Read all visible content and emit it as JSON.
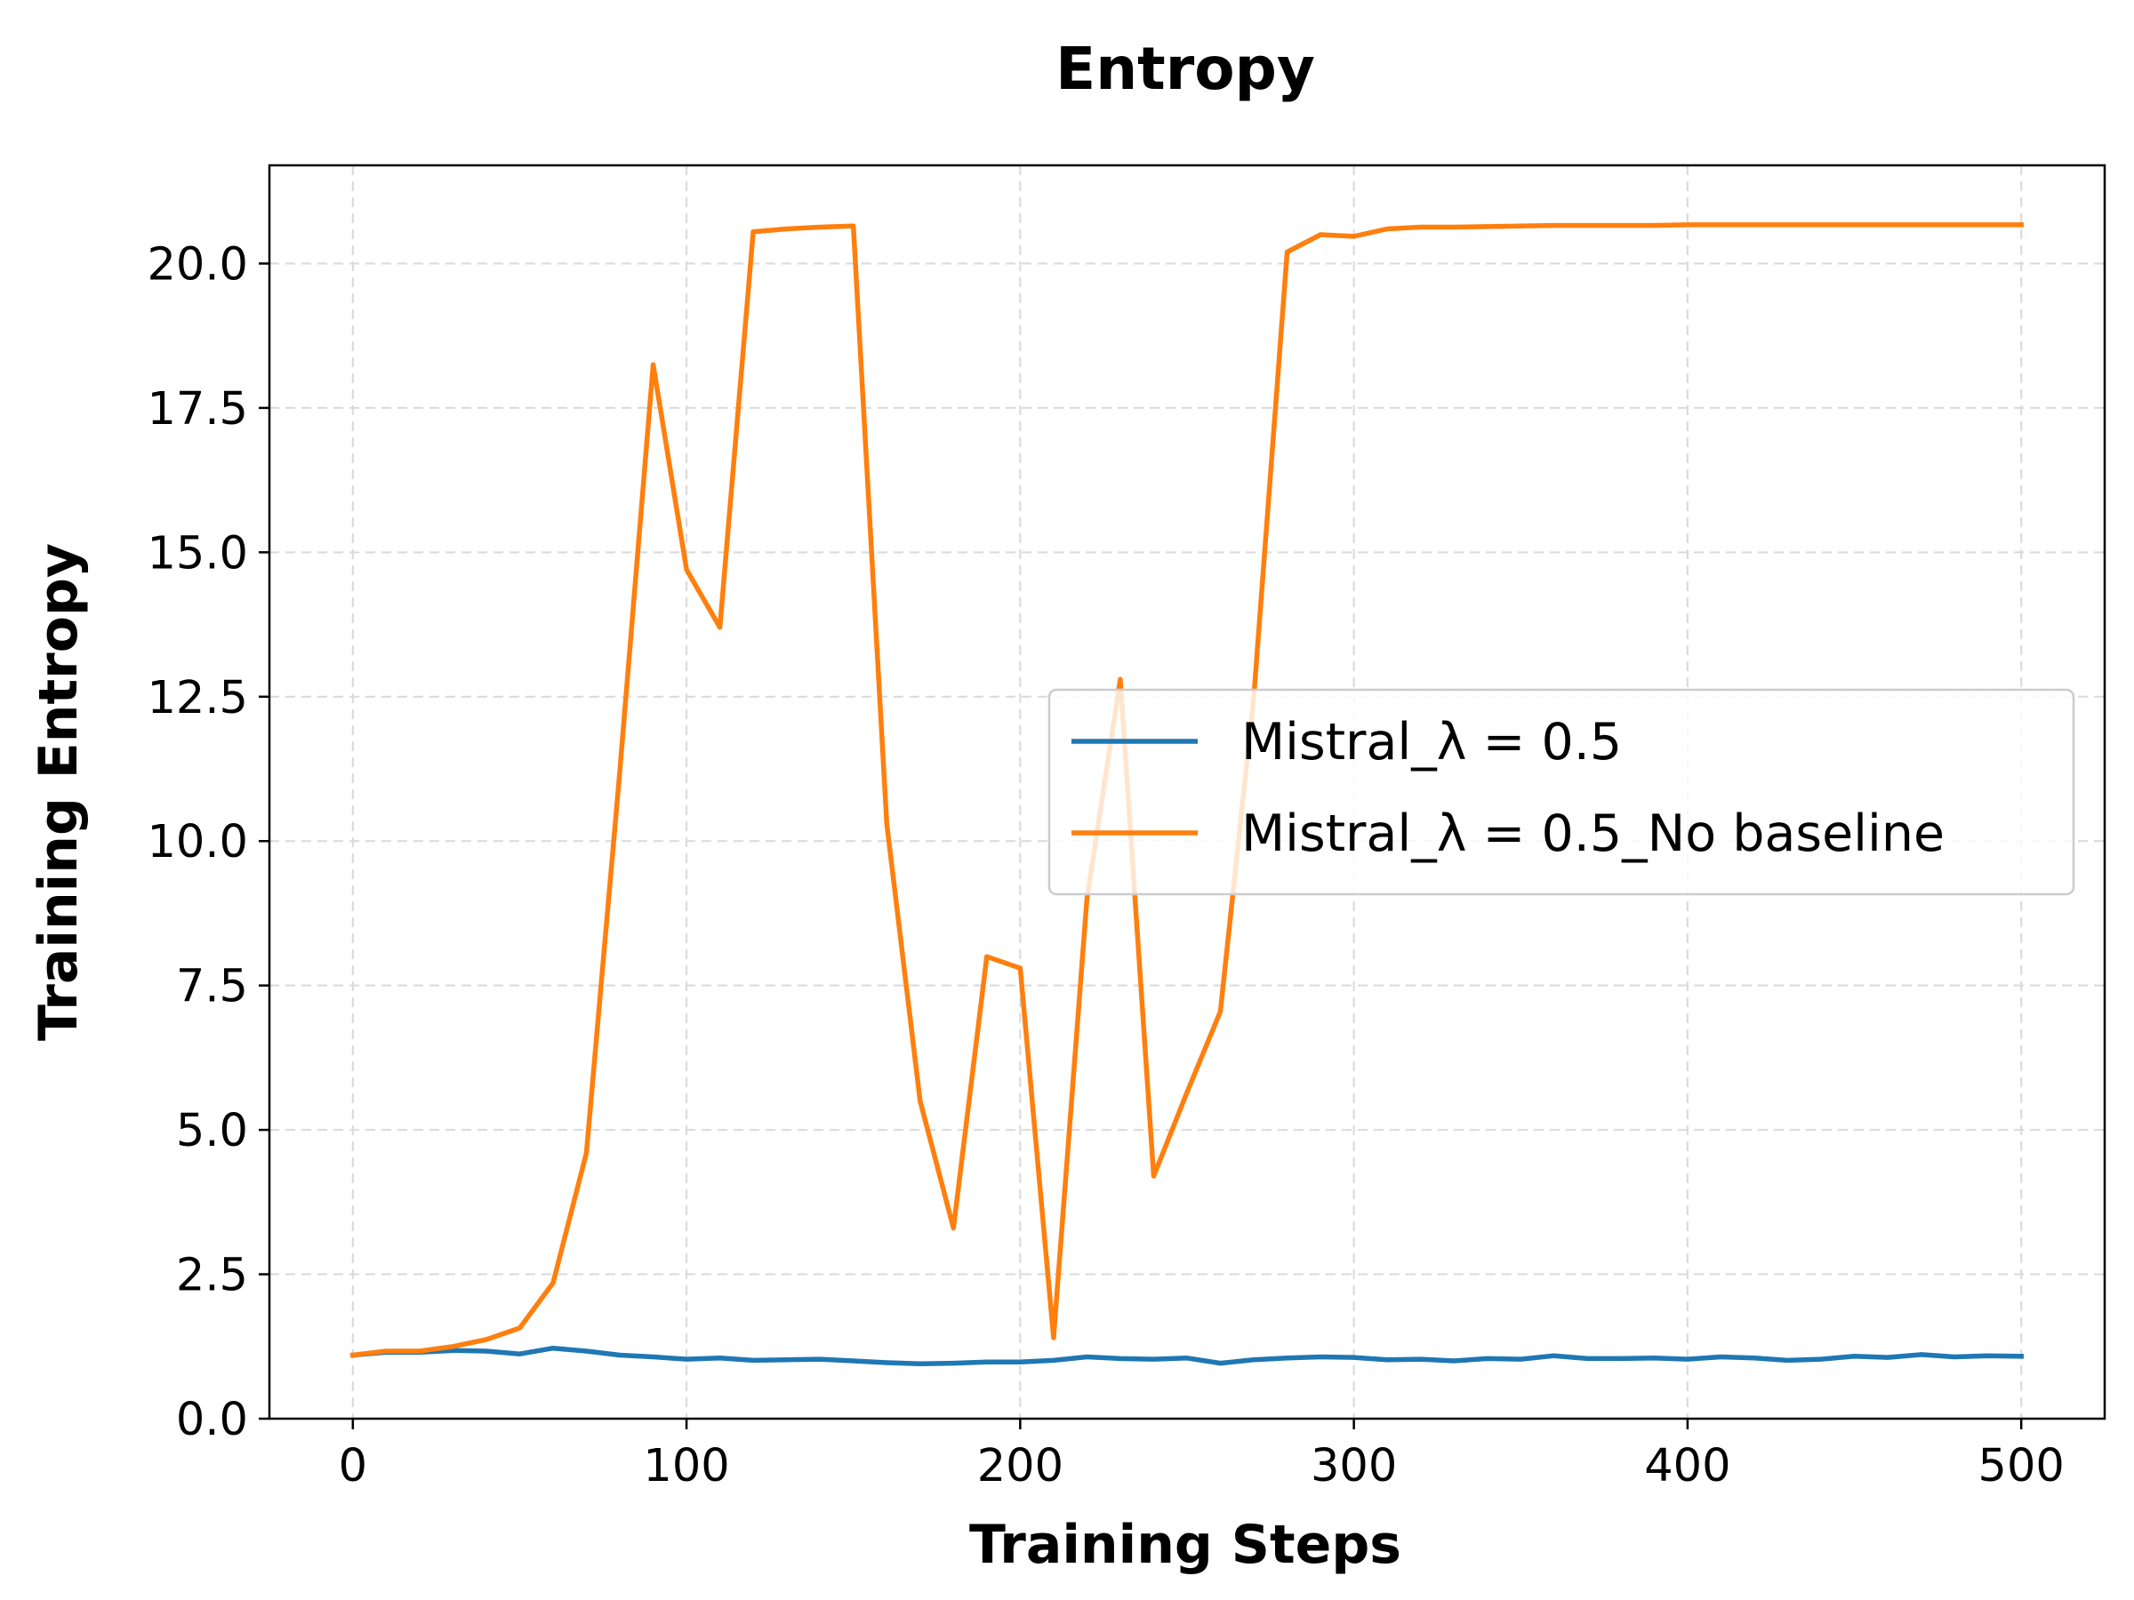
{
  "chart_data": {
    "type": "line",
    "title": "Entropy",
    "xlabel": "Training Steps",
    "ylabel": "Training Entropy",
    "xlim": [
      -25,
      525
    ],
    "ylim": [
      0,
      21.7
    ],
    "xticks": [
      0,
      100,
      200,
      300,
      400,
      500
    ],
    "yticks": [
      0,
      2.5,
      5,
      7.5,
      10,
      12.5,
      15,
      17.5,
      20
    ],
    "xtick_labels": [
      "0",
      "100",
      "200",
      "300",
      "400",
      "500"
    ],
    "ytick_labels": [
      "0.0",
      "2.5",
      "5.0",
      "7.5",
      "10.0",
      "12.5",
      "15.0",
      "17.5",
      "20.0"
    ],
    "grid": true,
    "legend_position": "center-right",
    "x": [
      0,
      10,
      20,
      30,
      40,
      50,
      60,
      70,
      80,
      90,
      100,
      110,
      120,
      130,
      140,
      150,
      160,
      170,
      180,
      190,
      200,
      210,
      220,
      230,
      240,
      250,
      260,
      270,
      280,
      290,
      300,
      310,
      320,
      330,
      340,
      350,
      360,
      370,
      380,
      390,
      400,
      410,
      420,
      430,
      440,
      450,
      460,
      470,
      480,
      490,
      500
    ],
    "series": [
      {
        "name": "Mistral_λ = 0.5",
        "color": "#1f77b4",
        "values": [
          1.1,
          1.15,
          1.15,
          1.18,
          1.17,
          1.12,
          1.22,
          1.17,
          1.1,
          1.07,
          1.03,
          1.05,
          1.01,
          1.02,
          1.03,
          1.0,
          0.97,
          0.95,
          0.96,
          0.98,
          0.98,
          1.01,
          1.07,
          1.04,
          1.03,
          1.05,
          0.96,
          1.02,
          1.05,
          1.07,
          1.06,
          1.02,
          1.03,
          1.0,
          1.04,
          1.03,
          1.09,
          1.04,
          1.04,
          1.05,
          1.03,
          1.07,
          1.05,
          1.01,
          1.03,
          1.08,
          1.06,
          1.11,
          1.07,
          1.09,
          1.08
        ]
      },
      {
        "name": "Mistral_λ = 0.5_No baseline",
        "color": "#ff7f0e",
        "values": [
          1.1,
          1.17,
          1.17,
          1.25,
          1.37,
          1.57,
          2.35,
          4.6,
          11.2,
          18.25,
          14.7,
          13.7,
          20.55,
          20.6,
          20.63,
          20.65,
          10.3,
          5.5,
          3.3,
          8.0,
          7.8,
          1.4,
          9.0,
          12.8,
          4.2,
          5.65,
          7.05,
          12.5,
          20.2,
          20.5,
          20.47,
          20.6,
          20.63,
          20.63,
          20.64,
          20.65,
          20.66,
          20.66,
          20.66,
          20.66,
          20.67,
          20.67,
          20.67,
          20.67,
          20.67,
          20.67,
          20.67,
          20.67,
          20.67,
          20.67,
          20.67
        ]
      }
    ]
  }
}
